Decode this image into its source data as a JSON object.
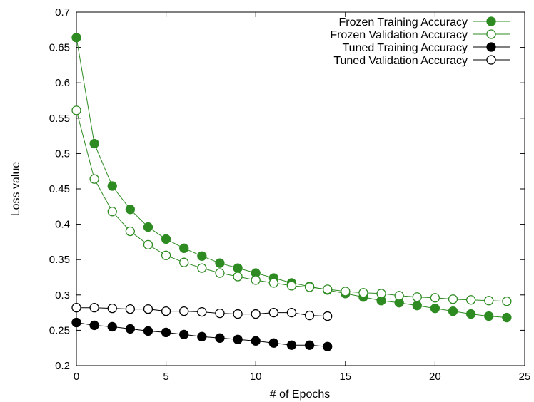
{
  "chart_data": {
    "type": "line",
    "title": "",
    "xlabel": "# of Epochs",
    "ylabel": "Loss value",
    "xlim": [
      0,
      25
    ],
    "ylim": [
      0.2,
      0.7
    ],
    "x_ticks": [
      0,
      5,
      10,
      15,
      20,
      25
    ],
    "y_ticks": [
      0.2,
      0.25,
      0.3,
      0.35,
      0.4,
      0.45,
      0.5,
      0.55,
      0.6,
      0.65,
      0.7
    ],
    "grid": false,
    "legend_position": "top-right",
    "series": [
      {
        "name": "Frozen Training Accuracy",
        "color": "#2e8b22",
        "marker": "filled-circle",
        "x": [
          0,
          1,
          2,
          3,
          4,
          5,
          6,
          7,
          8,
          9,
          10,
          11,
          12,
          13,
          14,
          15,
          16,
          17,
          18,
          19,
          20,
          21,
          22,
          23,
          24
        ],
        "values": [
          0.664,
          0.514,
          0.454,
          0.421,
          0.396,
          0.379,
          0.366,
          0.355,
          0.345,
          0.338,
          0.331,
          0.324,
          0.317,
          0.312,
          0.307,
          0.302,
          0.297,
          0.292,
          0.289,
          0.285,
          0.281,
          0.277,
          0.273,
          0.27,
          0.268
        ]
      },
      {
        "name": "Frozen Validation Accuracy",
        "color": "#2e8b22",
        "marker": "open-circle",
        "x": [
          0,
          1,
          2,
          3,
          4,
          5,
          6,
          7,
          8,
          9,
          10,
          11,
          12,
          13,
          14,
          15,
          16,
          17,
          18,
          19,
          20,
          21,
          22,
          23,
          24
        ],
        "values": [
          0.561,
          0.464,
          0.418,
          0.39,
          0.371,
          0.356,
          0.346,
          0.338,
          0.331,
          0.326,
          0.321,
          0.317,
          0.313,
          0.311,
          0.308,
          0.305,
          0.303,
          0.302,
          0.299,
          0.297,
          0.296,
          0.294,
          0.293,
          0.292,
          0.291
        ]
      },
      {
        "name": "Tuned Training Accuracy",
        "color": "#000000",
        "marker": "filled-circle",
        "x": [
          0,
          1,
          2,
          3,
          4,
          5,
          6,
          7,
          8,
          9,
          10,
          11,
          12,
          13,
          14
        ],
        "values": [
          0.261,
          0.257,
          0.255,
          0.252,
          0.249,
          0.247,
          0.244,
          0.241,
          0.239,
          0.237,
          0.235,
          0.232,
          0.229,
          0.229,
          0.227
        ]
      },
      {
        "name": "Tuned Validation Accuracy",
        "color": "#000000",
        "marker": "open-circle",
        "x": [
          0,
          1,
          2,
          3,
          4,
          5,
          6,
          7,
          8,
          9,
          10,
          11,
          12,
          13,
          14
        ],
        "values": [
          0.282,
          0.282,
          0.281,
          0.28,
          0.28,
          0.277,
          0.277,
          0.276,
          0.274,
          0.273,
          0.273,
          0.275,
          0.275,
          0.271,
          0.27
        ]
      }
    ]
  }
}
